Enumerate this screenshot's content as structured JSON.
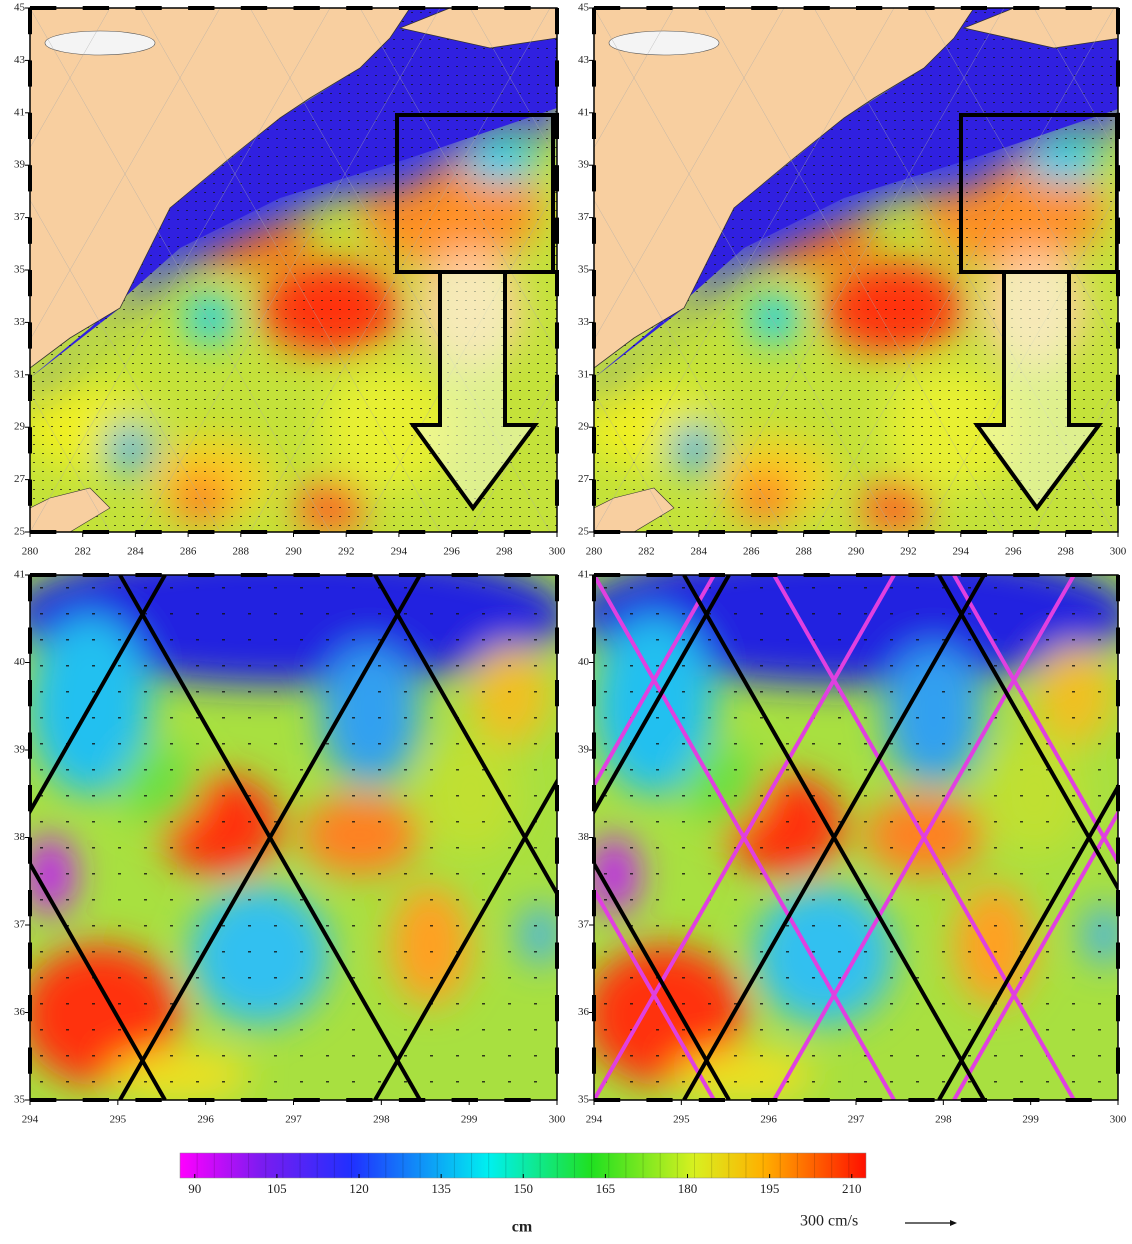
{
  "panels": [
    {
      "xticks": [
        280,
        282,
        284,
        286,
        288,
        290,
        292,
        294,
        296,
        298,
        300
      ],
      "xlim": [
        280,
        300
      ],
      "yticks": [
        25,
        27,
        29,
        31,
        33,
        35,
        37,
        39,
        41,
        43,
        45
      ],
      "ylim": [
        25,
        45
      ]
    },
    {
      "xticks": [
        280,
        282,
        284,
        286,
        288,
        290,
        292,
        294,
        296,
        298,
        300
      ],
      "xlim": [
        280,
        300
      ],
      "yticks": [
        25,
        27,
        29,
        31,
        33,
        35,
        37,
        39,
        41,
        43,
        45
      ],
      "ylim": [
        25,
        45
      ]
    },
    {
      "xticks": [
        294,
        295,
        296,
        297,
        298,
        299,
        300
      ],
      "xlim": [
        294,
        300
      ],
      "yticks": [
        35,
        36,
        37,
        38,
        39,
        40,
        41
      ],
      "ylim": [
        35,
        41
      ]
    },
    {
      "xticks": [
        294,
        295,
        296,
        297,
        298,
        299,
        300
      ],
      "xlim": [
        294,
        300
      ],
      "yticks": [
        35,
        36,
        37,
        38,
        39,
        40,
        41
      ],
      "ylim": [
        35,
        41
      ]
    }
  ],
  "colorbar": {
    "ticks": [
      90,
      105,
      120,
      135,
      150,
      165,
      180,
      195,
      210
    ],
    "lim": [
      87.3,
      212.6
    ],
    "unit": "cm"
  },
  "reference_vector": "300 cm/s"
}
